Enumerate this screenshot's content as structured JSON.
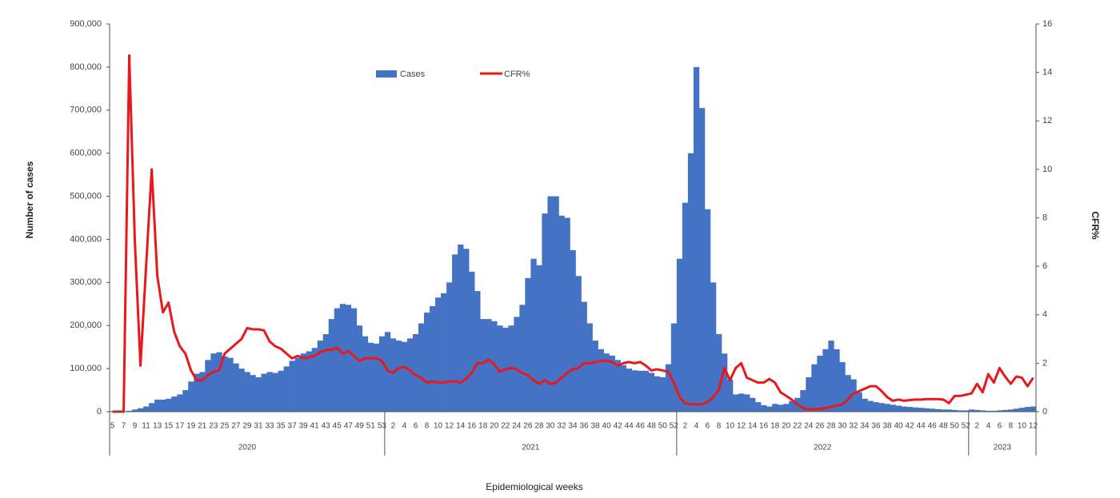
{
  "chart_data": {
    "type": "bar",
    "y_label": "Number of cases",
    "y2_label": "CFR%",
    "x_label": "Epidemiological weeks",
    "legend": "top",
    "categories": [
      "5",
      null,
      "7",
      null,
      "9",
      null,
      "11",
      null,
      "13",
      null,
      "15",
      null,
      "17",
      null,
      "19",
      null,
      "21",
      null,
      "23",
      null,
      "25",
      null,
      "27",
      null,
      "29",
      null,
      "31",
      null,
      "33",
      null,
      "35",
      null,
      "37",
      null,
      "39",
      null,
      "41",
      null,
      "43",
      null,
      "45",
      null,
      "47",
      null,
      "49",
      null,
      "51",
      null,
      "53",
      null,
      "2",
      null,
      "4",
      null,
      "6",
      null,
      "8",
      null,
      "10",
      null,
      "12",
      null,
      "14",
      null,
      "16",
      null,
      "18",
      null,
      "20",
      null,
      "22",
      null,
      "24",
      null,
      "26",
      null,
      "28",
      null,
      "30",
      null,
      "32",
      null,
      "34",
      null,
      "36",
      null,
      "38",
      null,
      "40",
      null,
      "42",
      null,
      "44",
      null,
      "46",
      null,
      "48",
      null,
      "50",
      null,
      "52",
      null,
      "2",
      null,
      "4",
      null,
      "6",
      null,
      "8",
      null,
      "10",
      null,
      "12",
      null,
      "14",
      null,
      "16",
      null,
      "18",
      null,
      "20",
      null,
      "22",
      null,
      "24",
      null,
      "26",
      null,
      "28",
      null,
      "30",
      null,
      "32",
      null,
      "34",
      null,
      "36",
      null,
      "38",
      null,
      "40",
      null,
      "42",
      null,
      "44",
      null,
      "46",
      null,
      "48",
      null,
      "50",
      null,
      "52",
      null,
      "2",
      null,
      "4",
      null,
      "6",
      null,
      "8",
      null,
      "10",
      null,
      "12"
    ],
    "groups": [
      "2020",
      "2021",
      "2022",
      "2023"
    ],
    "series": [
      {
        "name": "Cases",
        "type": "bar",
        "color": "#4472c4",
        "values": [
          0,
          0,
          0,
          2000,
          5000,
          8000,
          12000,
          20000,
          28000,
          28000,
          30000,
          35000,
          40000,
          50000,
          70000,
          88000,
          92000,
          120000,
          135000,
          138000,
          128000,
          125000,
          112000,
          100000,
          92000,
          85000,
          80000,
          88000,
          92000,
          90000,
          95000,
          105000,
          118000,
          125000,
          135000,
          140000,
          148000,
          165000,
          180000,
          215000,
          240000,
          250000,
          248000,
          240000,
          200000,
          175000,
          160000,
          158000,
          175000,
          185000,
          170000,
          165000,
          162000,
          170000,
          180000,
          205000,
          230000,
          245000,
          265000,
          275000,
          300000,
          365000,
          388000,
          378000,
          325000,
          280000,
          215000,
          215000,
          210000,
          200000,
          195000,
          200000,
          220000,
          248000,
          310000,
          355000,
          340000,
          460000,
          500000,
          500000,
          455000,
          450000,
          375000,
          315000,
          255000,
          205000,
          165000,
          145000,
          135000,
          130000,
          120000,
          108000,
          100000,
          96000,
          95000,
          95000,
          90000,
          82000,
          80000,
          110000,
          205000,
          355000,
          485000,
          600000,
          800000,
          705000,
          470000,
          300000,
          180000,
          135000,
          75000,
          40000,
          42000,
          40000,
          32000,
          22000,
          15000,
          12000,
          18000,
          16000,
          18000,
          25000,
          32000,
          50000,
          80000,
          110000,
          130000,
          145000,
          165000,
          145000,
          115000,
          85000,
          75000,
          45000,
          30000,
          25000,
          22000,
          20000,
          18000,
          16000,
          14000,
          12000,
          11000,
          10000,
          9000,
          8000,
          7000,
          6000,
          5000,
          5000,
          4000,
          3000,
          3000,
          5000,
          4000,
          3000,
          2000,
          2000,
          3000,
          4000,
          5000,
          7000,
          9000,
          11000,
          12000
        ]
      },
      {
        "name": "CFR%",
        "type": "line",
        "axis": "y2",
        "color": "#e8191d",
        "values": [
          0,
          0,
          0,
          14.7,
          7,
          1.9,
          6,
          10,
          5.6,
          4.1,
          4.5,
          3.3,
          2.7,
          2.4,
          1.7,
          1.3,
          1.3,
          1.5,
          1.65,
          1.7,
          2.4,
          2.6,
          2.8,
          3.0,
          3.45,
          3.4,
          3.4,
          3.35,
          2.9,
          2.7,
          2.6,
          2.4,
          2.2,
          2.3,
          2.2,
          2.25,
          2.3,
          2.45,
          2.55,
          2.55,
          2.65,
          2.4,
          2.5,
          2.3,
          2.1,
          2.2,
          2.2,
          2.2,
          2.1,
          1.7,
          1.6,
          1.8,
          1.85,
          1.7,
          1.5,
          1.4,
          1.2,
          1.25,
          1.2,
          1.2,
          1.25,
          1.25,
          1.2,
          1.35,
          1.6,
          2.0,
          2.0,
          2.15,
          1.95,
          1.65,
          1.75,
          1.8,
          1.75,
          1.6,
          1.5,
          1.3,
          1.15,
          1.3,
          1.15,
          1.2,
          1.4,
          1.6,
          1.75,
          1.8,
          2.0,
          2.0,
          2.05,
          2.1,
          2.1,
          2.05,
          1.9,
          2.0,
          2.05,
          2.0,
          2.05,
          1.9,
          1.7,
          1.75,
          1.7,
          1.65,
          1.2,
          0.6,
          0.35,
          0.3,
          0.3,
          0.3,
          0.4,
          0.6,
          0.9,
          1.8,
          1.3,
          1.8,
          2.0,
          1.4,
          1.3,
          1.2,
          1.2,
          1.35,
          1.2,
          0.8,
          0.65,
          0.5,
          0.3,
          0.15,
          0.1,
          0.1,
          0.12,
          0.15,
          0.2,
          0.25,
          0.3,
          0.5,
          0.75,
          0.85,
          0.95,
          1.05,
          1.05,
          0.85,
          0.6,
          0.45,
          0.5,
          0.45,
          0.48,
          0.5,
          0.5,
          0.52,
          0.52,
          0.52,
          0.5,
          0.35,
          0.65,
          0.65,
          0.7,
          0.75,
          1.15,
          0.8,
          1.55,
          1.2,
          1.8,
          1.45,
          1.15,
          1.45,
          1.4,
          1.05,
          1.4
        ]
      }
    ],
    "ylim": [
      0,
      900000
    ],
    "yticks": [
      {
        "value": 0,
        "label": "0"
      },
      {
        "value": 100000,
        "label": "100,000"
      },
      {
        "value": 200000,
        "label": "200,000"
      },
      {
        "value": 300000,
        "label": "300,000"
      },
      {
        "value": 400000,
        "label": "400,000"
      },
      {
        "value": 500000,
        "label": "500,000"
      },
      {
        "value": 600000,
        "label": "600,000"
      },
      {
        "value": 700000,
        "label": "700,000"
      },
      {
        "value": 800000,
        "label": "800,000"
      },
      {
        "value": 900000,
        "label": "900,000"
      }
    ],
    "y2lim": [
      0,
      16
    ],
    "y2ticks": [
      0,
      2,
      4,
      6,
      8,
      10,
      12,
      14,
      16
    ]
  }
}
